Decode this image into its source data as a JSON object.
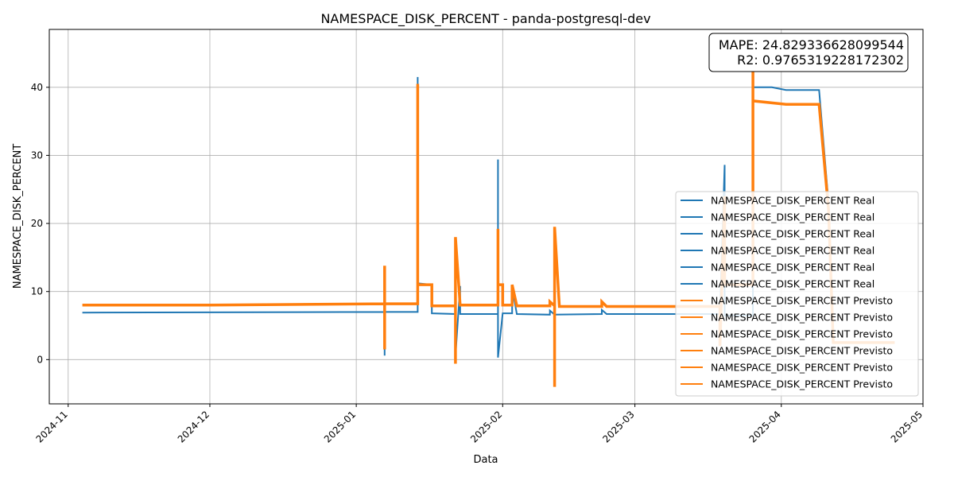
{
  "chart_data": {
    "type": "line",
    "title": "NAMESPACE_DISK_PERCENT - panda-postgresql-dev",
    "xlabel": "Data",
    "ylabel": "NAMESPACE_DISK_PERCENT",
    "xlim": [
      "2024-10-28",
      "2025-05-01"
    ],
    "ylim": [
      -6.5,
      48.5
    ],
    "grid": true,
    "x_ticks": [
      "2024-11",
      "2024-12",
      "2025-01",
      "2025-02",
      "2025-03",
      "2025-04",
      "2025-05"
    ],
    "y_ticks": [
      0,
      10,
      20,
      30,
      40
    ],
    "annotation": {
      "mape": "MAPE: 24.829336628099544",
      "r2": "R2: 0.9765319228172302"
    },
    "legend": {
      "position": "lower-right",
      "entries": [
        "NAMESPACE_DISK_PERCENT Real",
        "NAMESPACE_DISK_PERCENT Real",
        "NAMESPACE_DISK_PERCENT Real",
        "NAMESPACE_DISK_PERCENT Real",
        "NAMESPACE_DISK_PERCENT Real",
        "NAMESPACE_DISK_PERCENT Real",
        "NAMESPACE_DISK_PERCENT Previsto",
        "NAMESPACE_DISK_PERCENT Previsto",
        "NAMESPACE_DISK_PERCENT Previsto",
        "NAMESPACE_DISK_PERCENT Previsto",
        "NAMESPACE_DISK_PERCENT Previsto",
        "NAMESPACE_DISK_PERCENT Previsto"
      ]
    },
    "colors": {
      "real": "#1f77b4",
      "previsto": "#ff7f0e"
    },
    "series": [
      {
        "name": "NAMESPACE_DISK_PERCENT Real",
        "points": [
          [
            "2024-11-04",
            6.9
          ],
          [
            "2025-01-07",
            7.0
          ],
          [
            "2025-01-07",
            0.6
          ],
          [
            "2025-01-07",
            7.0
          ],
          [
            "2025-01-14",
            7.0
          ],
          [
            "2025-01-14",
            41.5
          ],
          [
            "2025-01-14",
            11.2
          ],
          [
            "2025-01-17",
            11.0
          ],
          [
            "2025-01-17",
            6.8
          ],
          [
            "2025-01-22",
            6.7
          ],
          [
            "2025-01-22",
            0.5
          ],
          [
            "2025-01-23",
            10.8
          ],
          [
            "2025-01-23",
            6.7
          ],
          [
            "2025-01-31",
            6.7
          ],
          [
            "2025-01-31",
            29.4
          ],
          [
            "2025-01-31",
            0.3
          ],
          [
            "2025-02-01",
            6.8
          ],
          [
            "2025-02-03",
            6.8
          ],
          [
            "2025-02-03",
            10.6
          ],
          [
            "2025-02-04",
            6.7
          ],
          [
            "2025-02-11",
            6.6
          ],
          [
            "2025-02-11",
            7.2
          ],
          [
            "2025-02-12",
            6.6
          ],
          [
            "2025-02-22",
            6.7
          ],
          [
            "2025-02-22",
            7.3
          ],
          [
            "2025-02-23",
            6.7
          ],
          [
            "2025-03-19",
            6.7
          ],
          [
            "2025-03-20",
            28.6
          ],
          [
            "2025-03-20",
            6.5
          ],
          [
            "2025-03-26",
            6.5
          ],
          [
            "2025-03-26",
            40.0
          ],
          [
            "2025-03-30",
            40.0
          ],
          [
            "2025-04-02",
            39.6
          ],
          [
            "2025-04-09",
            39.6
          ],
          [
            "2025-04-11",
            23.0
          ]
        ]
      },
      {
        "name": "NAMESPACE_DISK_PERCENT Previsto",
        "points": [
          [
            "2024-11-04",
            8.0
          ],
          [
            "2024-12-01",
            8.0
          ],
          [
            "2025-01-07",
            8.2
          ],
          [
            "2025-01-07",
            1.5
          ],
          [
            "2025-01-07",
            13.8
          ],
          [
            "2025-01-07",
            8.2
          ],
          [
            "2025-01-14",
            8.2
          ],
          [
            "2025-01-14",
            40.5
          ],
          [
            "2025-01-14",
            11.0
          ],
          [
            "2025-01-17",
            11.0
          ],
          [
            "2025-01-17",
            7.9
          ],
          [
            "2025-01-22",
            7.9
          ],
          [
            "2025-01-22",
            -0.6
          ],
          [
            "2025-01-22",
            18.0
          ],
          [
            "2025-01-23",
            8.0
          ],
          [
            "2025-01-31",
            8.0
          ],
          [
            "2025-01-31",
            19.2
          ],
          [
            "2025-01-31",
            11.0
          ],
          [
            "2025-02-01",
            11.0
          ],
          [
            "2025-02-01",
            8.0
          ],
          [
            "2025-02-03",
            8.0
          ],
          [
            "2025-02-03",
            11.0
          ],
          [
            "2025-02-04",
            7.9
          ],
          [
            "2025-02-11",
            7.9
          ],
          [
            "2025-02-11",
            8.5
          ],
          [
            "2025-02-12",
            7.9
          ],
          [
            "2025-02-12",
            -4.0
          ],
          [
            "2025-02-12",
            19.5
          ],
          [
            "2025-02-13",
            7.8
          ],
          [
            "2025-02-22",
            7.8
          ],
          [
            "2025-02-22",
            8.5
          ],
          [
            "2025-02-23",
            7.8
          ],
          [
            "2025-03-19",
            7.8
          ],
          [
            "2025-03-19",
            2.0
          ],
          [
            "2025-03-20",
            24.0
          ],
          [
            "2025-03-20",
            11.0
          ],
          [
            "2025-03-26",
            11.0
          ],
          [
            "2025-03-26",
            44.0
          ],
          [
            "2025-03-26",
            38.0
          ],
          [
            "2025-04-02",
            37.5
          ],
          [
            "2025-04-09",
            37.5
          ],
          [
            "2025-04-11",
            22.0
          ],
          [
            "2025-04-12",
            2.5
          ],
          [
            "2025-04-25",
            2.5
          ]
        ]
      }
    ]
  }
}
